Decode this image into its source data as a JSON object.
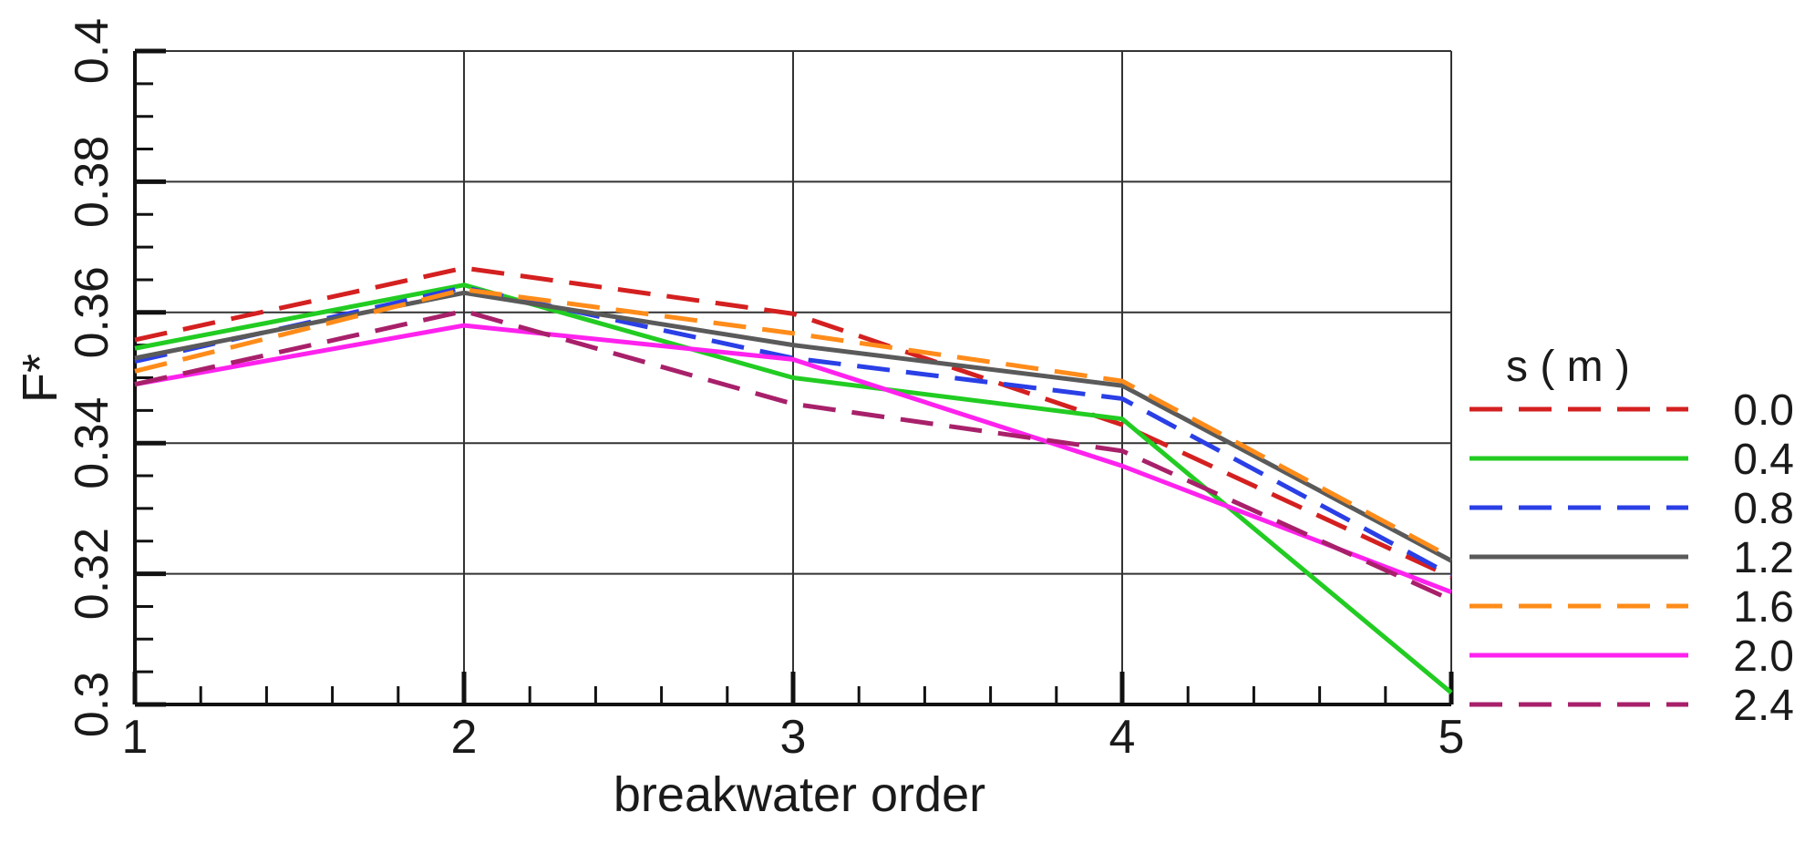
{
  "chart_data": {
    "type": "line",
    "title": "",
    "xlabel": "breakwater order",
    "ylabel": "F*",
    "xlim": [
      1,
      5
    ],
    "ylim": [
      0.3,
      0.4
    ],
    "x": [
      1,
      2,
      3,
      4,
      5
    ],
    "x_ticks": [
      "1",
      "2",
      "3",
      "4",
      "5"
    ],
    "y_ticks": [
      {
        "value": 0.3,
        "label": "0.3"
      },
      {
        "value": 0.32,
        "label": "0.32"
      },
      {
        "value": 0.34,
        "label": "0.34"
      },
      {
        "value": 0.36,
        "label": "0.36"
      },
      {
        "value": 0.38,
        "label": "0.38"
      },
      {
        "value": 0.4,
        "label": "0.4"
      }
    ],
    "grid": true,
    "legend_title": "s ( m )",
    "legend_position": "right",
    "series": [
      {
        "name": "0.0",
        "color": "#d42020",
        "dash": "dashed",
        "values": [
          0.3558,
          0.3668,
          0.3598,
          0.3428,
          0.3195
        ]
      },
      {
        "name": "0.4",
        "color": "#22cc22",
        "dash": "solid",
        "values": [
          0.3545,
          0.3642,
          0.35,
          0.3437,
          0.3018
        ]
      },
      {
        "name": "0.8",
        "color": "#2a3fe6",
        "dash": "dashed",
        "values": [
          0.3525,
          0.3638,
          0.353,
          0.3468,
          0.3198
        ]
      },
      {
        "name": "1.2",
        "color": "#5a5a5a",
        "dash": "solid",
        "values": [
          0.353,
          0.363,
          0.355,
          0.3488,
          0.322
        ]
      },
      {
        "name": "1.6",
        "color": "#ff8c1a",
        "dash": "dashed",
        "values": [
          0.351,
          0.3635,
          0.3568,
          0.3495,
          0.3225
        ]
      },
      {
        "name": "2.0",
        "color": "#ff22ee",
        "dash": "solid",
        "values": [
          0.349,
          0.358,
          0.3528,
          0.3365,
          0.3172
        ]
      },
      {
        "name": "2.4",
        "color": "#a8206a",
        "dash": "dashed",
        "values": [
          0.349,
          0.3602,
          0.346,
          0.3388,
          0.316
        ]
      }
    ]
  }
}
